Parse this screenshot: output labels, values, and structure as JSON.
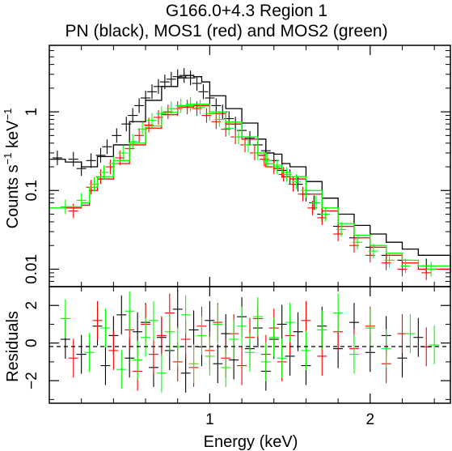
{
  "chart_data": [
    {
      "type": "scatter",
      "panel": "spectrum",
      "title": "G166.0+4.3 Region 1",
      "subtitle": "PN (black), MOS1 (red) and MOS2 (green)",
      "xlabel": "",
      "ylabel_parts": [
        "Counts s",
        "−1",
        " keV",
        "−1"
      ],
      "y_scale": "log",
      "xlim": [
        0.0,
        2.5
      ],
      "ylim": [
        0.006,
        7.0
      ],
      "x_ticks": [
        1,
        2
      ],
      "y_ticks": [
        0.01,
        0.1,
        1
      ],
      "y_tick_labels": [
        "0.01",
        "0.1",
        "1"
      ],
      "grid": false,
      "series": [
        {
          "color": "#000000",
          "data_x": [
            0.05,
            0.15,
            0.2,
            0.26,
            0.32,
            0.36,
            0.42,
            0.48,
            0.52,
            0.56,
            0.6,
            0.64,
            0.68,
            0.72,
            0.76,
            0.8,
            0.84,
            0.88,
            0.92,
            0.96,
            1.0,
            1.04,
            1.08,
            1.12,
            1.16,
            1.2,
            1.25,
            1.3,
            1.35,
            1.4,
            1.45,
            1.5,
            1.55,
            1.6,
            1.65,
            1.7,
            1.8,
            1.9,
            2.0,
            2.1,
            2.2,
            2.35
          ],
          "data_y": [
            0.26,
            0.25,
            0.19,
            0.24,
            0.28,
            0.36,
            0.5,
            0.7,
            0.9,
            1.2,
            1.5,
            1.8,
            2.1,
            2.4,
            2.6,
            2.8,
            2.9,
            2.7,
            2.3,
            1.8,
            1.5,
            1.2,
            1.0,
            0.82,
            0.7,
            0.58,
            0.46,
            0.38,
            0.32,
            0.24,
            0.18,
            0.15,
            0.12,
            0.09,
            0.07,
            0.05,
            0.035,
            0.025,
            0.019,
            0.015,
            0.013,
            0.011
          ],
          "model_x": [
            0.0,
            0.1,
            0.2,
            0.3,
            0.4,
            0.5,
            0.6,
            0.7,
            0.8,
            0.85,
            0.9,
            0.95,
            1.0,
            1.1,
            1.2,
            1.3,
            1.35,
            1.4,
            1.45,
            1.5,
            1.6,
            1.7,
            1.8,
            1.9,
            2.0,
            2.1,
            2.2,
            2.3,
            2.5
          ],
          "model_y": [
            0.25,
            0.23,
            0.2,
            0.27,
            0.38,
            0.75,
            1.4,
            2.1,
            2.7,
            2.9,
            2.8,
            2.4,
            1.6,
            1.1,
            0.72,
            0.45,
            0.3,
            0.29,
            0.22,
            0.2,
            0.13,
            0.08,
            0.05,
            0.036,
            0.028,
            0.022,
            0.018,
            0.015,
            0.011
          ]
        },
        {
          "color": "#ff0000",
          "data_x": [
            0.15,
            0.26,
            0.32,
            0.38,
            0.44,
            0.5,
            0.56,
            0.62,
            0.68,
            0.74,
            0.8,
            0.86,
            0.92,
            0.98,
            1.04,
            1.1,
            1.16,
            1.22,
            1.28,
            1.34,
            1.4,
            1.46,
            1.52,
            1.58,
            1.64,
            1.7,
            1.8,
            1.9,
            2.0,
            2.1,
            2.2,
            2.35
          ],
          "data_y": [
            0.055,
            0.11,
            0.15,
            0.2,
            0.26,
            0.34,
            0.5,
            0.68,
            0.85,
            1.0,
            1.1,
            1.15,
            1.1,
            0.9,
            0.75,
            0.6,
            0.48,
            0.38,
            0.3,
            0.25,
            0.2,
            0.16,
            0.12,
            0.09,
            0.06,
            0.045,
            0.028,
            0.02,
            0.015,
            0.012,
            0.01,
            0.009
          ],
          "model_x": [
            0.1,
            0.2,
            0.25,
            0.3,
            0.4,
            0.5,
            0.6,
            0.7,
            0.8,
            0.9,
            1.0,
            1.1,
            1.2,
            1.3,
            1.35,
            1.4,
            1.45,
            1.5,
            1.6,
            1.7,
            1.8,
            1.9,
            2.0,
            2.1,
            2.2,
            2.3,
            2.5
          ],
          "model_y": [
            0.06,
            0.065,
            0.1,
            0.14,
            0.22,
            0.38,
            0.62,
            0.92,
            1.15,
            1.2,
            0.95,
            0.7,
            0.45,
            0.28,
            0.2,
            0.19,
            0.15,
            0.14,
            0.09,
            0.055,
            0.035,
            0.025,
            0.019,
            0.015,
            0.012,
            0.01,
            0.009
          ]
        },
        {
          "color": "#00ff00",
          "data_x": [
            0.1,
            0.2,
            0.28,
            0.34,
            0.4,
            0.46,
            0.52,
            0.58,
            0.64,
            0.7,
            0.76,
            0.82,
            0.88,
            0.94,
            1.0,
            1.06,
            1.12,
            1.18,
            1.24,
            1.3,
            1.36,
            1.42,
            1.48,
            1.54,
            1.6,
            1.66,
            1.72,
            1.82,
            1.92,
            2.02,
            2.12,
            2.22,
            2.38
          ],
          "data_y": [
            0.062,
            0.075,
            0.12,
            0.17,
            0.22,
            0.3,
            0.42,
            0.6,
            0.78,
            0.95,
            1.1,
            1.2,
            1.25,
            1.15,
            0.95,
            0.8,
            0.62,
            0.48,
            0.38,
            0.3,
            0.24,
            0.2,
            0.16,
            0.13,
            0.1,
            0.07,
            0.05,
            0.032,
            0.022,
            0.017,
            0.013,
            0.011,
            0.01
          ],
          "model_x": [
            0.0,
            0.1,
            0.2,
            0.25,
            0.3,
            0.4,
            0.5,
            0.6,
            0.7,
            0.8,
            0.9,
            1.0,
            1.1,
            1.2,
            1.3,
            1.35,
            1.4,
            1.45,
            1.5,
            1.6,
            1.7,
            1.8,
            1.9,
            2.0,
            2.1,
            2.2,
            2.3,
            2.5
          ],
          "model_y": [
            0.06,
            0.062,
            0.07,
            0.11,
            0.15,
            0.24,
            0.4,
            0.66,
            0.98,
            1.2,
            1.25,
            1.0,
            0.74,
            0.48,
            0.3,
            0.22,
            0.21,
            0.17,
            0.15,
            0.1,
            0.06,
            0.038,
            0.027,
            0.02,
            0.016,
            0.013,
            0.011,
            0.01
          ]
        }
      ]
    },
    {
      "type": "scatter",
      "panel": "residuals",
      "xlabel": "Energy (keV)",
      "ylabel": "Residuals",
      "xlim": [
        0.0,
        2.5
      ],
      "ylim": [
        -3.2,
        3.0
      ],
      "x_ticks": [
        1,
        2
      ],
      "x_tick_labels": [
        "1",
        "2"
      ],
      "y_ticks": [
        -2,
        0,
        2
      ],
      "y_tick_labels": [
        "−2",
        "0",
        "2"
      ],
      "zero_line": true,
      "series": [
        {
          "color": "#000000",
          "x": [
            0.1,
            0.2,
            0.3,
            0.35,
            0.4,
            0.45,
            0.5,
            0.55,
            0.6,
            0.65,
            0.7,
            0.75,
            0.8,
            0.85,
            0.9,
            0.95,
            1.0,
            1.05,
            1.1,
            1.15,
            1.2,
            1.25,
            1.3,
            1.35,
            1.4,
            1.45,
            1.5,
            1.55,
            1.6,
            1.7,
            1.8,
            1.9,
            2.0,
            2.1,
            2.2,
            2.3
          ],
          "y": [
            0.2,
            -0.6,
            0.9,
            -1.2,
            0.4,
            1.5,
            -0.8,
            0.6,
            1.1,
            -1.3,
            0.3,
            -0.4,
            1.8,
            -1.6,
            0.7,
            -0.2,
            1.2,
            -1.1,
            0.5,
            -0.9,
            1.4,
            -0.3,
            0.8,
            -1.5,
            0.2,
            1.0,
            -0.7,
            0.6,
            -1.2,
            0.9,
            -0.3,
            1.1,
            -0.5,
            0.4,
            -0.8,
            0.3
          ]
        },
        {
          "color": "#ff0000",
          "x": [
            0.15,
            0.3,
            0.4,
            0.5,
            0.55,
            0.6,
            0.65,
            0.7,
            0.75,
            0.8,
            0.85,
            0.9,
            0.95,
            1.0,
            1.05,
            1.1,
            1.15,
            1.2,
            1.25,
            1.3,
            1.35,
            1.4,
            1.45,
            1.5,
            1.6,
            1.7,
            1.8,
            1.9,
            2.0,
            2.1,
            2.2,
            2.35
          ],
          "y": [
            -0.8,
            1.2,
            -0.4,
            0.7,
            -1.5,
            1.0,
            -0.6,
            0.4,
            1.6,
            -1.0,
            0.2,
            -1.3,
            0.9,
            -0.4,
            1.1,
            -0.8,
            0.5,
            -1.2,
            0.3,
            1.3,
            -0.6,
            0.8,
            -1.0,
            0.4,
            1.2,
            -0.7,
            0.6,
            -0.3,
            0.9,
            -1.1,
            0.5,
            -0.2
          ]
        },
        {
          "color": "#00ff00",
          "x": [
            0.1,
            0.25,
            0.35,
            0.45,
            0.5,
            0.55,
            0.6,
            0.65,
            0.7,
            0.75,
            0.8,
            0.85,
            0.9,
            0.95,
            1.0,
            1.05,
            1.1,
            1.15,
            1.2,
            1.25,
            1.3,
            1.35,
            1.4,
            1.45,
            1.5,
            1.6,
            1.7,
            1.8,
            1.9,
            2.0,
            2.1,
            2.25,
            2.4
          ],
          "y": [
            1.3,
            -0.5,
            0.8,
            -1.4,
            1.7,
            -0.9,
            0.3,
            1.2,
            -1.6,
            0.6,
            -0.2,
            1.5,
            -1.1,
            0.4,
            -0.7,
            1.0,
            -1.3,
            0.2,
            0.9,
            -0.5,
            1.4,
            -1.0,
            0.3,
            -0.8,
            1.1,
            -0.4,
            0.7,
            1.6,
            -0.6,
            0.8,
            -0.3,
            0.5,
            -0.1
          ]
        }
      ]
    }
  ]
}
